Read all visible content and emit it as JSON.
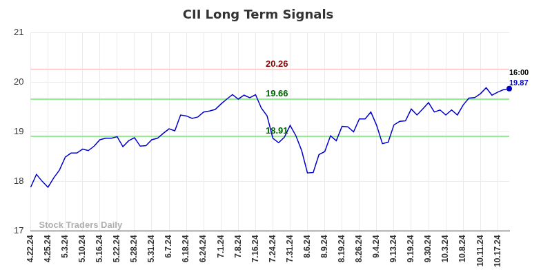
{
  "chart_data": {
    "type": "line",
    "title": "CII Long Term Signals",
    "watermark": "Stock Traders Daily",
    "categories": [
      "4.22.24",
      null,
      null,
      "4.25.24",
      null,
      null,
      "5.3.24",
      null,
      null,
      "5.10.24",
      null,
      null,
      "5.16.24",
      null,
      null,
      "5.22.24",
      null,
      null,
      "5.28.24",
      null,
      null,
      "5.31.24",
      null,
      null,
      "6.7.24",
      null,
      null,
      "6.18.24",
      null,
      null,
      "6.24.24",
      null,
      null,
      "7.1.24",
      null,
      null,
      "7.8.24",
      null,
      null,
      "7.16.24",
      null,
      null,
      "7.24.24",
      null,
      null,
      "7.31.24",
      null,
      null,
      "8.6.24",
      null,
      null,
      "8.9.24",
      null,
      null,
      "8.19.24",
      null,
      null,
      "8.26.24",
      null,
      null,
      "9.4.24",
      null,
      null,
      "9.13.24",
      null,
      null,
      "9.19.24",
      null,
      null,
      "9.30.24",
      null,
      null,
      "10.3.24",
      null,
      null,
      "10.8.24",
      null,
      null,
      "10.11.24",
      null,
      null,
      "10.17.24",
      null,
      null
    ],
    "values": [
      17.88,
      18.14,
      18.0,
      17.88,
      18.07,
      18.23,
      18.49,
      18.57,
      18.57,
      18.65,
      18.62,
      18.71,
      18.84,
      18.87,
      18.87,
      18.9,
      18.7,
      18.82,
      18.88,
      18.71,
      18.72,
      18.84,
      18.87,
      18.97,
      19.06,
      19.02,
      19.34,
      19.32,
      19.27,
      19.3,
      19.4,
      19.42,
      19.45,
      19.56,
      19.66,
      19.75,
      19.66,
      19.74,
      19.69,
      19.75,
      19.48,
      19.32,
      18.87,
      18.78,
      18.89,
      19.13,
      18.92,
      18.62,
      18.17,
      18.18,
      18.54,
      18.6,
      18.92,
      18.82,
      19.11,
      19.1,
      19.0,
      19.26,
      19.26,
      19.4,
      19.13,
      18.76,
      18.79,
      19.14,
      19.21,
      19.22,
      19.46,
      19.34,
      19.46,
      19.59,
      19.4,
      19.44,
      19.34,
      19.44,
      19.34,
      19.54,
      19.68,
      19.69,
      19.77,
      19.89,
      19.74,
      19.8,
      19.85,
      19.87
    ],
    "color": "#0000cc",
    "ylim": [
      17,
      21
    ],
    "yticks": [
      17,
      18,
      19,
      20,
      21
    ],
    "grid": true,
    "reference_lines": [
      {
        "value": 20.26,
        "label": "20.26",
        "color": "#ffcccc",
        "label_color": "#8b0000"
      },
      {
        "value": 19.66,
        "label": "19.66",
        "color": "#90ee90",
        "label_color": "#006400"
      },
      {
        "value": 18.91,
        "label": "18.91",
        "color": "#90ee90",
        "label_color": "#006400"
      }
    ],
    "end_label": "16:00"
  }
}
